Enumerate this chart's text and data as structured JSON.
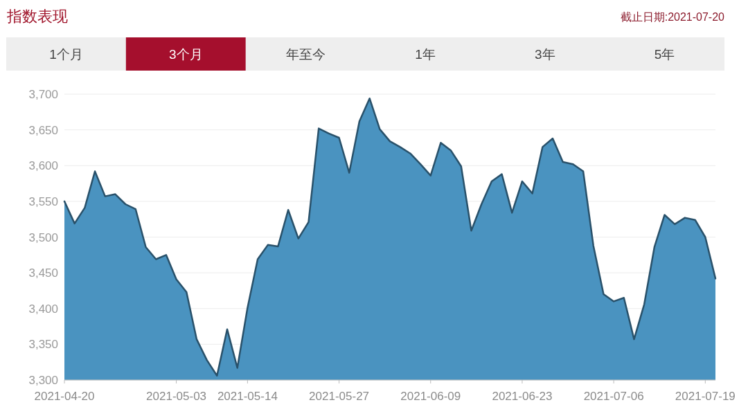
{
  "chart_data": {
    "type": "area",
    "title": "指数表现",
    "annotations": [
      "截止日期:2021-07-20",
      "1个月",
      "3个月",
      "年至今",
      "1年",
      "3年",
      "5年"
    ],
    "categories": [
      "2021-04-20",
      null,
      null,
      null,
      null,
      null,
      null,
      null,
      null,
      null,
      null,
      "2021-05-03",
      null,
      null,
      null,
      null,
      null,
      null,
      "2021-05-14",
      null,
      null,
      null,
      null,
      null,
      null,
      null,
      null,
      "2021-05-27",
      null,
      null,
      null,
      null,
      null,
      null,
      null,
      null,
      "2021-06-09",
      null,
      null,
      null,
      null,
      null,
      null,
      null,
      null,
      "2021-06-23",
      null,
      null,
      null,
      null,
      null,
      null,
      null,
      null,
      "2021-07-06",
      null,
      null,
      null,
      null,
      null,
      null,
      null,
      null,
      "2021-07-19",
      null
    ],
    "series": [
      {
        "color": "#4a93c0",
        "values": [
          3550,
          3519,
          3541,
          3592,
          3557,
          3560,
          3546,
          3539,
          3486,
          3469,
          3475,
          3441,
          3423,
          3357,
          3328,
          3306,
          3371,
          3317,
          3401,
          3469,
          3489,
          3487,
          3538,
          3498,
          3521,
          3652,
          3645,
          3639,
          3590,
          3662,
          3694,
          3651,
          3634,
          3626,
          3617,
          3602,
          3586,
          3632,
          3621,
          3599,
          3509,
          3546,
          3578,
          3588,
          3534,
          3578,
          3561,
          3626,
          3638,
          3605,
          3602,
          3592,
          3488,
          3420,
          3410,
          3415,
          3357,
          3406,
          3486,
          3531,
          3518,
          3527,
          3524,
          3500,
          3442
        ]
      }
    ],
    "ylim": [
      3300,
      3700
    ],
    "yticks": [
      {
        "value": 3300,
        "label": "3,300"
      },
      {
        "value": 3350,
        "label": "3,350"
      },
      {
        "value": 3400,
        "label": "3,400"
      },
      {
        "value": 3450,
        "label": "3,450"
      },
      {
        "value": 3500,
        "label": "3,500"
      },
      {
        "value": 3550,
        "label": "3,550"
      },
      {
        "value": 3600,
        "label": "3,600"
      },
      {
        "value": 3650,
        "label": "3,650"
      },
      {
        "value": 3700,
        "label": "3,700"
      }
    ],
    "grid": "y"
  }
}
